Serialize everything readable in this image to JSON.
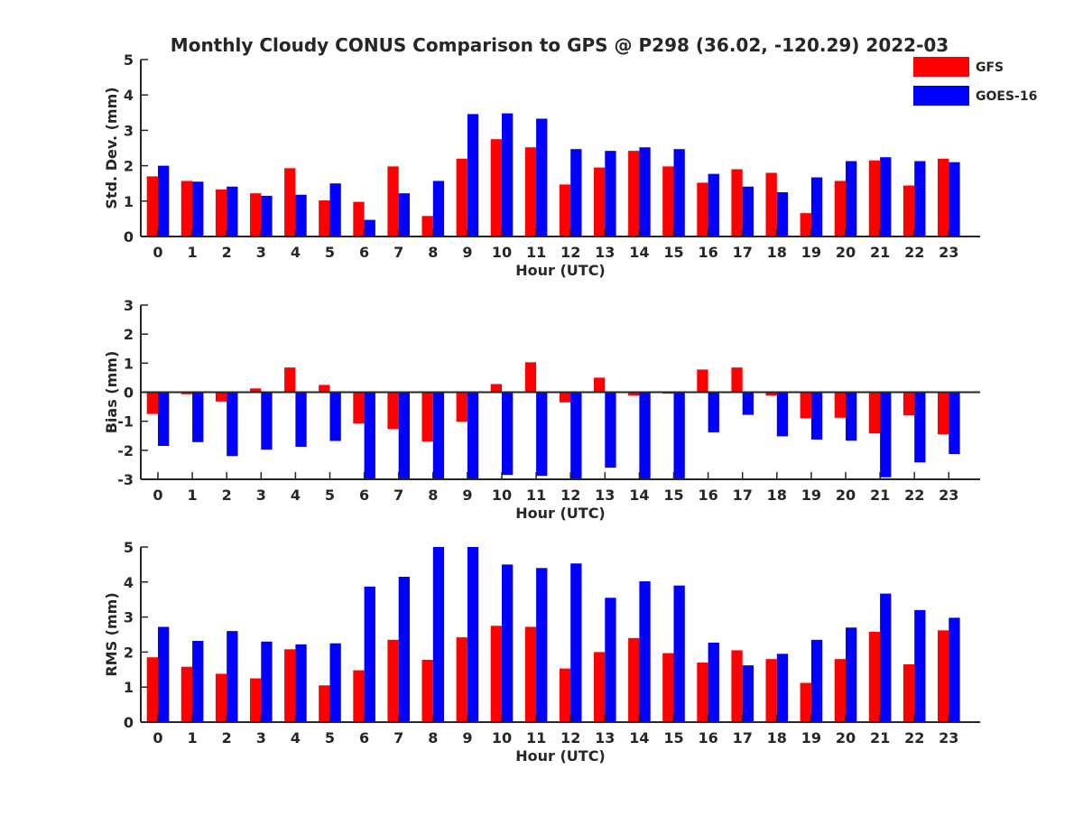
{
  "title": "Monthly Cloudy CONUS Comparison to GPS @ P298 (36.02, -120.29) 2022-03",
  "legend": {
    "position": "top-right",
    "entries": [
      {
        "label": "GFS",
        "color": "#ff0000"
      },
      {
        "label": "GOES-16",
        "color": "#0000ff"
      }
    ]
  },
  "colors": {
    "GFS": "#ff0000",
    "GOES-16": "#0000ff",
    "axis": "#262626"
  },
  "chart_data": [
    {
      "type": "bar",
      "xlabel": "Hour (UTC)",
      "ylabel": "Std. Dev. (mm)",
      "ylim": [
        0,
        5
      ],
      "yticks": [
        0,
        1,
        2,
        3,
        4,
        5
      ],
      "categories": [
        "0",
        "1",
        "2",
        "3",
        "4",
        "5",
        "6",
        "7",
        "8",
        "9",
        "10",
        "11",
        "12",
        "13",
        "14",
        "15",
        "16",
        "17",
        "18",
        "19",
        "20",
        "21",
        "22",
        "23"
      ],
      "series": [
        {
          "name": "GFS",
          "values": [
            1.7,
            1.57,
            1.33,
            1.22,
            1.93,
            1.02,
            0.98,
            1.98,
            0.58,
            2.2,
            2.75,
            2.52,
            1.47,
            1.95,
            2.42,
            1.98,
            1.52,
            1.9,
            1.8,
            0.66,
            1.57,
            2.15,
            1.44,
            2.2
          ]
        },
        {
          "name": "GOES-16",
          "values": [
            2.0,
            1.55,
            1.41,
            1.15,
            1.18,
            1.5,
            0.47,
            1.22,
            1.57,
            3.46,
            3.48,
            3.33,
            2.47,
            2.42,
            2.52,
            2.47,
            1.77,
            1.41,
            1.25,
            1.67,
            2.13,
            2.24,
            2.13,
            2.1
          ]
        }
      ]
    },
    {
      "type": "bar",
      "xlabel": "Hour (UTC)",
      "ylabel": "Bias (mm)",
      "ylim": [
        -3,
        3
      ],
      "yticks": [
        -3,
        -2,
        -1,
        0,
        1,
        2,
        3
      ],
      "categories": [
        "0",
        "1",
        "2",
        "3",
        "4",
        "5",
        "6",
        "7",
        "8",
        "9",
        "10",
        "11",
        "12",
        "13",
        "14",
        "15",
        "16",
        "17",
        "18",
        "19",
        "20",
        "21",
        "22",
        "23"
      ],
      "series": [
        {
          "name": "GFS",
          "values": [
            -0.75,
            -0.07,
            -0.32,
            0.13,
            0.85,
            0.25,
            -1.08,
            -1.27,
            -1.7,
            -1.02,
            0.28,
            1.03,
            -0.35,
            0.5,
            -0.12,
            -0.05,
            0.78,
            0.85,
            -0.12,
            -0.9,
            -0.88,
            -1.42,
            -0.8,
            -1.45
          ]
        },
        {
          "name": "GOES-16",
          "values": [
            -1.85,
            -1.72,
            -2.2,
            -1.98,
            -1.88,
            -1.68,
            -3.0,
            -3.0,
            -3.0,
            -3.0,
            -2.85,
            -2.88,
            -3.0,
            -2.6,
            -3.0,
            -3.0,
            -1.38,
            -0.78,
            -1.52,
            -1.63,
            -1.67,
            -2.93,
            -2.42,
            -2.13
          ]
        }
      ]
    },
    {
      "type": "bar",
      "xlabel": "Hour (UTC)",
      "ylabel": "RMS (mm)",
      "ylim": [
        0,
        5
      ],
      "yticks": [
        0,
        1,
        2,
        3,
        4,
        5
      ],
      "categories": [
        "0",
        "1",
        "2",
        "3",
        "4",
        "5",
        "6",
        "7",
        "8",
        "9",
        "10",
        "11",
        "12",
        "13",
        "14",
        "15",
        "16",
        "17",
        "18",
        "19",
        "20",
        "21",
        "22",
        "23"
      ],
      "series": [
        {
          "name": "GFS",
          "values": [
            1.85,
            1.58,
            1.38,
            1.25,
            2.08,
            1.05,
            1.48,
            2.35,
            1.78,
            2.42,
            2.75,
            2.72,
            1.53,
            2.0,
            2.4,
            1.97,
            1.7,
            2.05,
            1.8,
            1.12,
            1.8,
            2.58,
            1.65,
            2.62
          ]
        },
        {
          "name": "GOES-16",
          "values": [
            2.72,
            2.32,
            2.6,
            2.3,
            2.22,
            2.25,
            3.87,
            4.15,
            5.0,
            5.0,
            4.5,
            4.4,
            4.53,
            3.55,
            4.02,
            3.9,
            2.27,
            1.62,
            1.95,
            2.35,
            2.7,
            3.67,
            3.2,
            2.98
          ]
        }
      ]
    }
  ]
}
